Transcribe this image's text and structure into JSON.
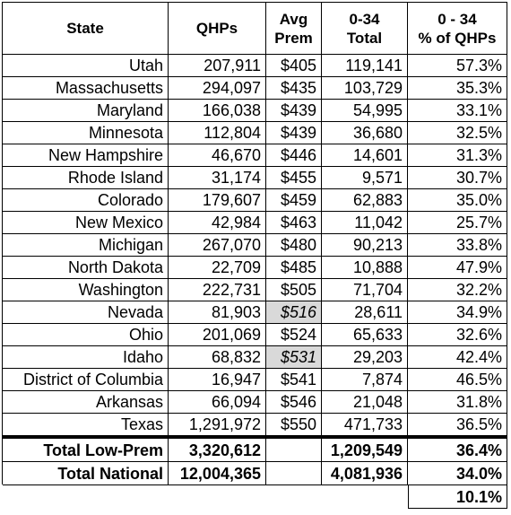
{
  "table": {
    "header": [
      [
        "State"
      ],
      [
        "QHPs"
      ],
      [
        "Avg",
        "Prem"
      ],
      [
        "0-34",
        "Total"
      ],
      [
        "0 - 34",
        "% of QHPs"
      ]
    ],
    "rows": [
      [
        "Utah",
        "207,911",
        "$405",
        "119,141",
        "57.3%"
      ],
      [
        "Massachusetts",
        "294,097",
        "$435",
        "103,729",
        "35.3%"
      ],
      [
        "Maryland",
        "166,038",
        "$439",
        "54,995",
        "33.1%"
      ],
      [
        "Minnesota",
        "112,804",
        "$439",
        "36,680",
        "32.5%"
      ],
      [
        "New Hampshire",
        "46,670",
        "$446",
        "14,601",
        "31.3%"
      ],
      [
        "Rhode Island",
        "31,174",
        "$455",
        "9,571",
        "30.7%"
      ],
      [
        "Colorado",
        "179,607",
        "$459",
        "62,883",
        "35.0%"
      ],
      [
        "New Mexico",
        "42,984",
        "$463",
        "11,042",
        "25.7%"
      ],
      [
        "Michigan",
        "267,070",
        "$480",
        "90,213",
        "33.8%"
      ],
      [
        "North Dakota",
        "22,709",
        "$485",
        "10,888",
        "47.9%"
      ],
      [
        "Washington",
        "222,731",
        "$505",
        "71,704",
        "32.2%"
      ],
      [
        "Nevada",
        "81,903",
        "$516",
        "28,611",
        "34.9%"
      ],
      [
        "Ohio",
        "201,069",
        "$524",
        "65,633",
        "32.6%"
      ],
      [
        "Idaho",
        "68,832",
        "$531",
        "29,203",
        "42.4%"
      ],
      [
        "District of Columbia",
        "16,947",
        "$541",
        "7,874",
        "46.5%"
      ],
      [
        "Arkansas",
        "66,094",
        "$546",
        "21,048",
        "31.8%"
      ],
      [
        "Texas",
        "1,291,972",
        "$550",
        "471,733",
        "36.5%"
      ]
    ],
    "highlighted_cells": [
      [
        11,
        2
      ],
      [
        13,
        2
      ]
    ],
    "totals": [
      [
        "Total Low-Prem",
        "3,320,612",
        null,
        "1,209,549",
        "36.4%"
      ],
      [
        "Total National",
        "12,004,365",
        null,
        "4,081,936",
        "34.0%"
      ]
    ],
    "extra": "10.1%"
  }
}
